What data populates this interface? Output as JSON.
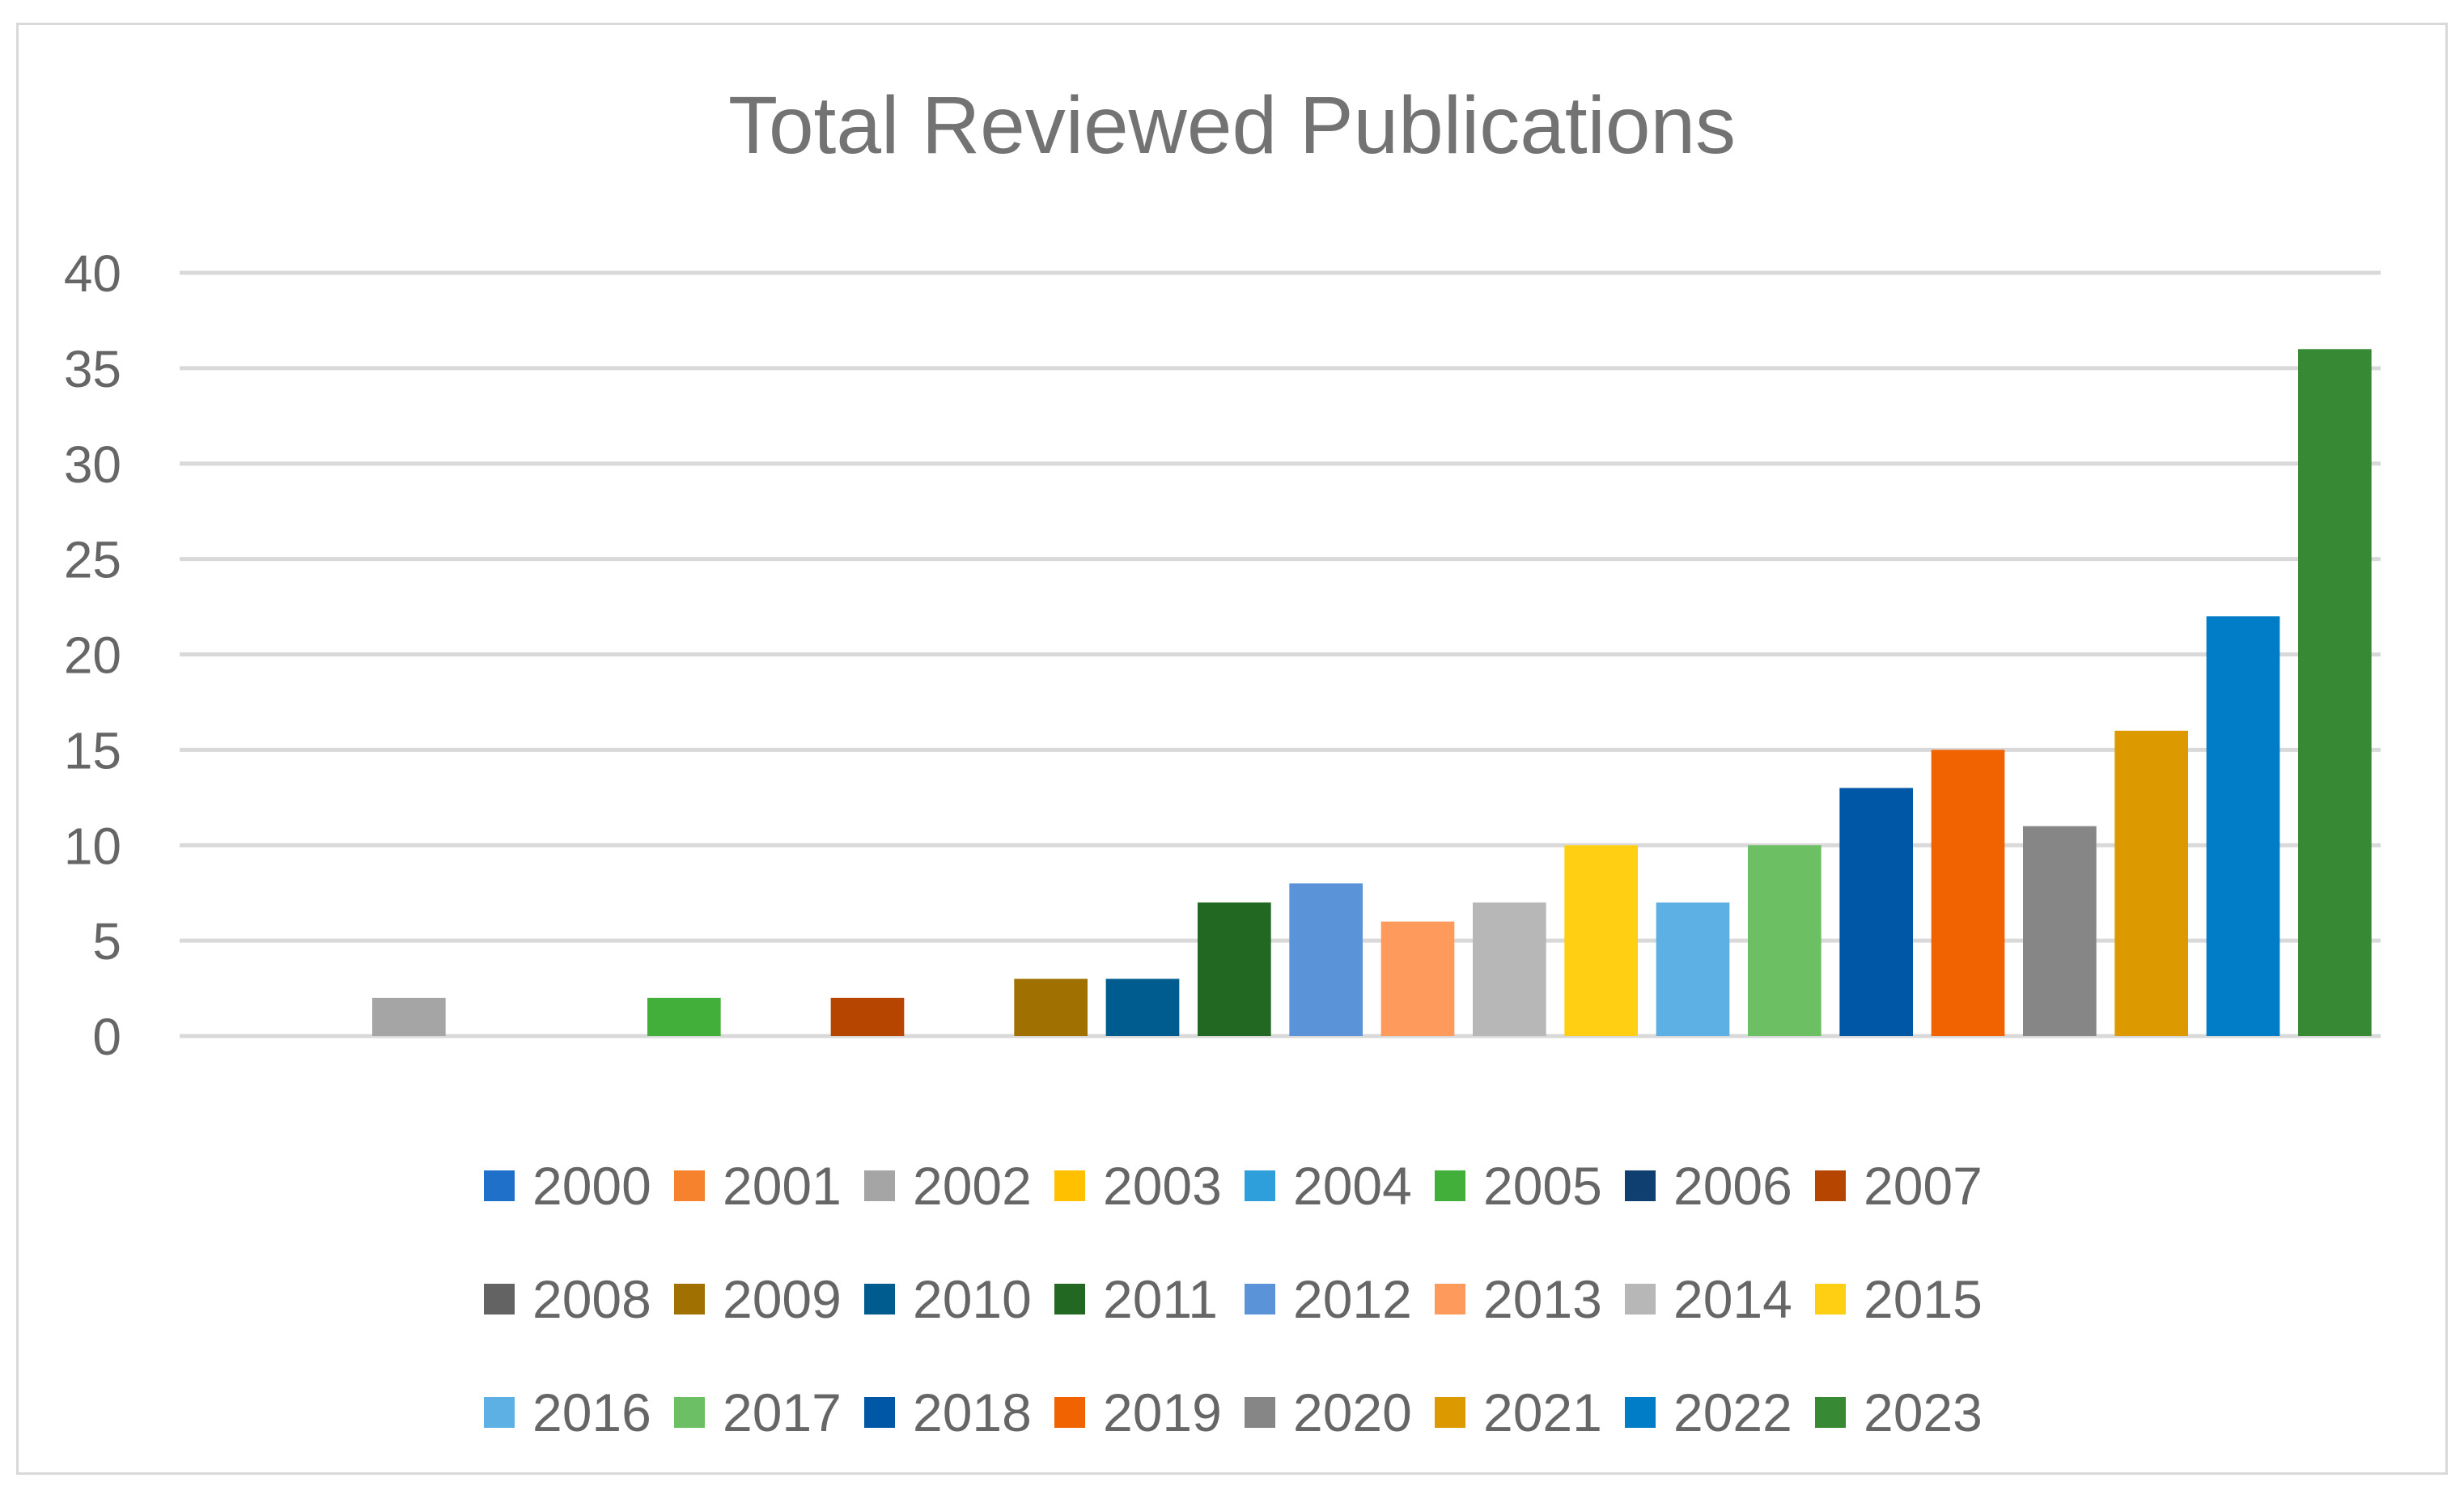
{
  "chart_data": {
    "type": "bar",
    "title": "Total Reviewed Publications",
    "xlabel": "",
    "ylabel": "",
    "ylim": [
      0,
      40
    ],
    "yticks": [
      "0",
      "5",
      "10",
      "15",
      "20",
      "25",
      "30",
      "35",
      "40"
    ],
    "grid": true,
    "legend_position": "bottom",
    "series": [
      {
        "name": "2000",
        "value": 0,
        "color": "#1F70C8"
      },
      {
        "name": "2001",
        "value": 0,
        "color": "#F7822D"
      },
      {
        "name": "2002",
        "value": 2,
        "color": "#A5A5A5"
      },
      {
        "name": "2003",
        "value": 0,
        "color": "#FFC000"
      },
      {
        "name": "2004",
        "value": 0,
        "color": "#2E9FDB"
      },
      {
        "name": "2005",
        "value": 2,
        "color": "#43AF3B"
      },
      {
        "name": "2006",
        "value": 0,
        "color": "#0E3F70"
      },
      {
        "name": "2007",
        "value": 2,
        "color": "#B64500"
      },
      {
        "name": "2008",
        "value": 0,
        "color": "#636363"
      },
      {
        "name": "2009",
        "value": 3,
        "color": "#A07000"
      },
      {
        "name": "2010",
        "value": 3,
        "color": "#005C8E"
      },
      {
        "name": "2011",
        "value": 7,
        "color": "#226822"
      },
      {
        "name": "2012",
        "value": 8,
        "color": "#5B93D8"
      },
      {
        "name": "2013",
        "value": 6,
        "color": "#FE9B5C"
      },
      {
        "name": "2014",
        "value": 7,
        "color": "#B7B7B7"
      },
      {
        "name": "2015",
        "value": 10,
        "color": "#FFCF14"
      },
      {
        "name": "2016",
        "value": 7,
        "color": "#5CB0E3"
      },
      {
        "name": "2017",
        "value": 10,
        "color": "#6CC063"
      },
      {
        "name": "2018",
        "value": 13,
        "color": "#0057A5"
      },
      {
        "name": "2019",
        "value": 15,
        "color": "#F06300"
      },
      {
        "name": "2020",
        "value": 11,
        "color": "#868686"
      },
      {
        "name": "2021",
        "value": 16,
        "color": "#DD9A00"
      },
      {
        "name": "2022",
        "value": 22,
        "color": "#007DC6"
      },
      {
        "name": "2023",
        "value": 36,
        "color": "#378A33"
      }
    ]
  }
}
